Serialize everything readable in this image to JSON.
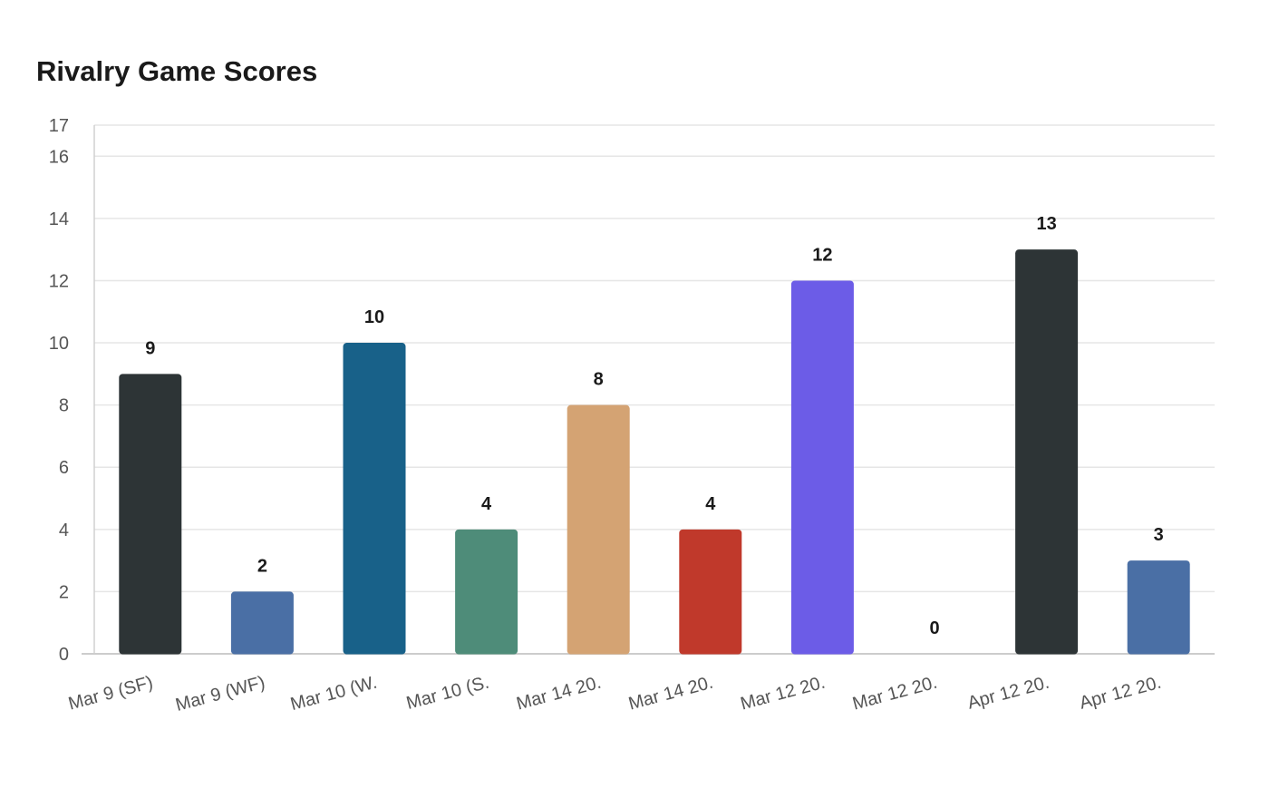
{
  "chart_data": {
    "type": "bar",
    "title": "Rivalry Game Scores",
    "xlabel": "",
    "ylabel": "",
    "categories": [
      "Mar 9 (SF)",
      "Mar 9 (WF)",
      "Mar 10 (W.",
      "Mar 10 (S.",
      "Mar 14 20.",
      "Mar 14 20.",
      "Mar 12 20.",
      "Mar 12 20.",
      "Apr 12 20.",
      "Apr 12 20."
    ],
    "values": [
      9,
      2,
      10,
      4,
      8,
      4,
      12,
      0,
      13,
      3
    ],
    "bar_colors": [
      "#2d3436",
      "#4a6fa5",
      "#186189",
      "#4e8c79",
      "#d4a373",
      "#c0392b",
      "#6c5ce7",
      "#9aa5b1",
      "#2d3436",
      "#4a6fa5"
    ],
    "ylim": [
      0,
      17
    ],
    "yticks": [
      0,
      2,
      4,
      6,
      8,
      10,
      12,
      14,
      16,
      17
    ],
    "grid": true,
    "legend": "none",
    "data_labels": true
  }
}
